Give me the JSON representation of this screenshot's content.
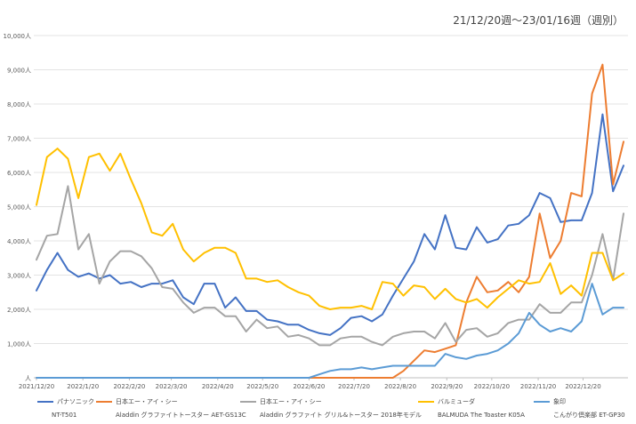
{
  "chart_data": {
    "type": "line",
    "title": "21/12/20週〜23/01/16週（週別）",
    "xlabel": "",
    "ylabel": "",
    "ylim": [
      0,
      10000
    ],
    "y_ticks": [
      0,
      1000,
      2000,
      3000,
      4000,
      5000,
      6000,
      7000,
      8000,
      9000,
      10000
    ],
    "y_tick_labels": [
      "人",
      "1,000人",
      "2,000人",
      "3,000人",
      "4,000人",
      "5,000人",
      "6,000人",
      "7,000人",
      "8,000人",
      "9,000人",
      "10,000人"
    ],
    "x_tick_labels": [
      "2021/12/20",
      "2022/1/20",
      "2022/2/20",
      "2022/3/20",
      "2022/4/20",
      "2022/5/20",
      "2022/6/20",
      "2022/7/20",
      "2022/8/20",
      "2022/9/20",
      "2022/10/20",
      "2022/11/20",
      "2022/12/20"
    ],
    "x_tick_weeks": [
      0,
      4.43,
      8.86,
      12.86,
      17.29,
      21.57,
      26.0,
      30.29,
      34.71,
      39.14,
      43.43,
      47.86,
      52.14
    ],
    "weeks": 57,
    "grid": true,
    "legend_position": "bottom",
    "series": [
      {
        "name": "パナソニック",
        "model": "NT-T501",
        "color": "#4472C4",
        "values": [
          2550,
          3150,
          3650,
          3150,
          2950,
          3050,
          2900,
          3000,
          2750,
          2800,
          2650,
          2750,
          2750,
          2850,
          2350,
          2150,
          2750,
          2750,
          2050,
          2350,
          1950,
          1950,
          1700,
          1650,
          1550,
          1550,
          1400,
          1300,
          1250,
          1450,
          1750,
          1800,
          1650,
          1850,
          2400,
          2900,
          3400,
          4200,
          3750,
          4750,
          3800,
          3750,
          4400,
          3950,
          4050,
          4450,
          4500,
          4750,
          5400,
          5250,
          4550,
          4600,
          4600,
          5400,
          7700,
          5450,
          6200
        ]
      },
      {
        "name": "日本エー・アイ・シー",
        "model": "Aladdin グラファイトトースター AET-GS13C",
        "color": "#ED7D31",
        "values": [
          0,
          0,
          0,
          0,
          0,
          0,
          0,
          0,
          0,
          0,
          0,
          0,
          0,
          0,
          0,
          0,
          0,
          0,
          0,
          0,
          0,
          0,
          0,
          0,
          0,
          0,
          0,
          0,
          0,
          0,
          0,
          0,
          0,
          0,
          0,
          200,
          500,
          800,
          750,
          850,
          950,
          2200,
          2950,
          2500,
          2550,
          2800,
          2500,
          2950,
          4800,
          3500,
          4000,
          5400,
          5300,
          8300,
          9150,
          5650,
          6900
        ]
      },
      {
        "name": "日本エー・アイ・シー",
        "model": "Aladdin グラファイト グリル&トースター 2018年モデル",
        "color": "#A5A5A5",
        "values": [
          3450,
          4150,
          4200,
          5600,
          3750,
          4200,
          2750,
          3400,
          3700,
          3700,
          3550,
          3200,
          2650,
          2600,
          2200,
          1900,
          2050,
          2050,
          1800,
          1800,
          1350,
          1700,
          1450,
          1500,
          1200,
          1250,
          1150,
          950,
          950,
          1150,
          1200,
          1200,
          1050,
          950,
          1200,
          1300,
          1350,
          1350,
          1150,
          1600,
          1050,
          1400,
          1450,
          1200,
          1300,
          1600,
          1700,
          1700,
          2150,
          1900,
          1900,
          2200,
          2200,
          3000,
          4200,
          2850,
          4800
        ]
      },
      {
        "name": "バルミューダ",
        "model": "BALMUDA The Toaster K05A",
        "color": "#FFC000",
        "values": [
          5050,
          6450,
          6700,
          6400,
          5250,
          6450,
          6550,
          6050,
          6550,
          5800,
          5100,
          4250,
          4150,
          4500,
          3750,
          3400,
          3650,
          3800,
          3800,
          3650,
          2900,
          2900,
          2800,
          2850,
          2650,
          2500,
          2400,
          2100,
          2000,
          2050,
          2050,
          2100,
          2000,
          2800,
          2750,
          2400,
          2700,
          2650,
          2300,
          2600,
          2300,
          2200,
          2300,
          2050,
          2350,
          2600,
          2850,
          2750,
          2800,
          3350,
          2450,
          2700,
          2400,
          3650,
          3650,
          2850,
          3050
        ]
      },
      {
        "name": "象印",
        "model": "こんがり倶楽部 ET-GP30",
        "color": "#5B9BD5",
        "values": [
          0,
          0,
          0,
          0,
          0,
          0,
          0,
          0,
          0,
          0,
          0,
          0,
          0,
          0,
          0,
          0,
          0,
          0,
          0,
          0,
          0,
          0,
          0,
          0,
          0,
          0,
          0,
          100,
          200,
          250,
          250,
          300,
          250,
          300,
          350,
          350,
          350,
          350,
          350,
          700,
          600,
          550,
          650,
          700,
          800,
          1000,
          1300,
          1900,
          1550,
          1350,
          1450,
          1350,
          1650,
          2750,
          1850,
          2050,
          2050
        ]
      }
    ]
  }
}
